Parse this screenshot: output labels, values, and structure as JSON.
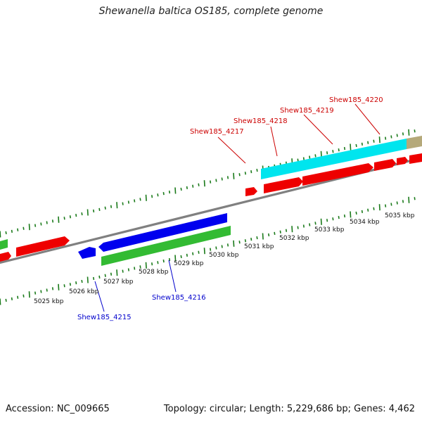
{
  "title": "Shewanella baltica OS185, complete genome",
  "footer": {
    "accession": "Accession: NC_009665",
    "summary": "Topology: circular; Length: 5,229,686 bp; Genes: 4,462"
  },
  "colors": {
    "backbone": "#808080",
    "tick": "#1a7a1a",
    "top_label": "#cc0000",
    "bottom_label": "#0000cc",
    "red": "#ee0000",
    "blue": "#0000ee",
    "green": "#33bb33",
    "cyan": "#00e5ee",
    "khaki": "#b5a97a"
  },
  "top_ticks": {
    "labels": [
      "5025 kbp",
      "5026 kbp",
      "5027 kbp",
      "5028 kbp",
      "5029 kbp",
      "5030 kbp",
      "5031 kbp",
      "5032 kbp",
      "5033 kbp",
      "5034 kbp",
      "5035 kbp"
    ]
  },
  "top_genes": {
    "labels": [
      "Shew185_4217",
      "Shew185_4218",
      "Shew185_4219",
      "Shew185_4220"
    ]
  },
  "bottom_genes": {
    "labels": [
      "Shew185_4215",
      "Shew185_4216"
    ]
  }
}
